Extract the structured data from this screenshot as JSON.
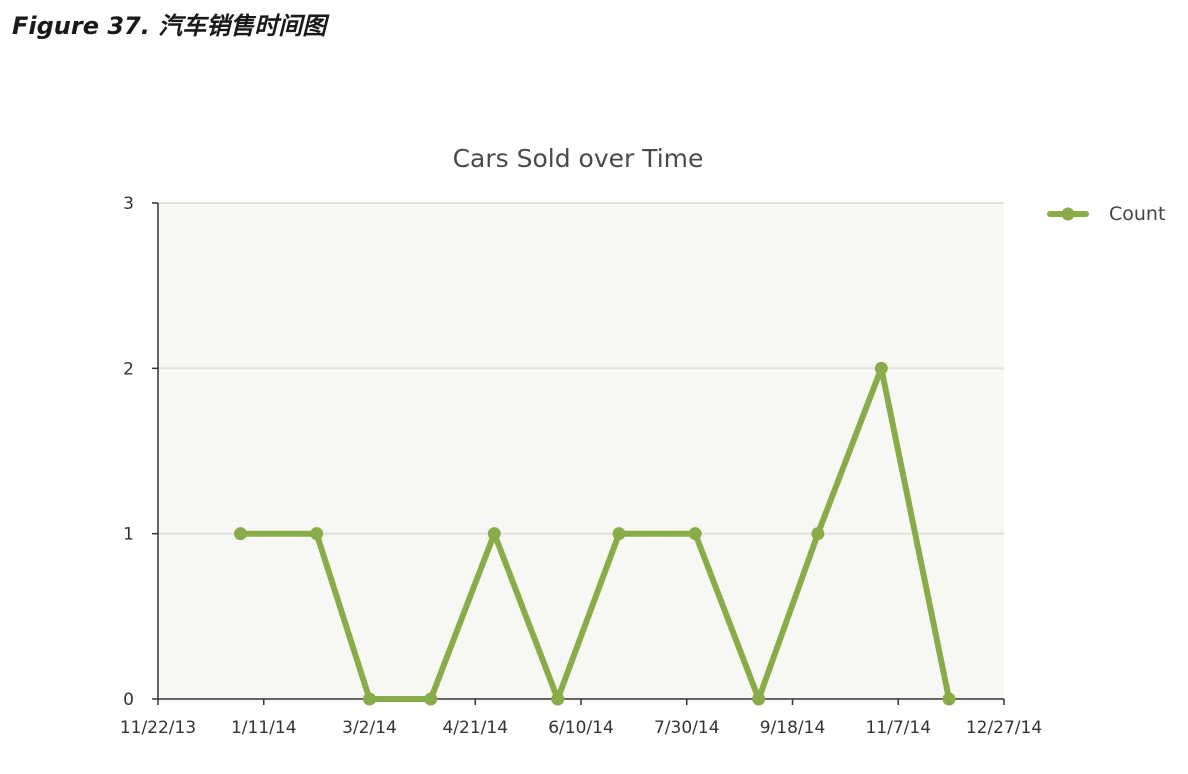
{
  "figure": {
    "caption": "Figure 37. 汽车销售时间图"
  },
  "chart_data": {
    "type": "line",
    "title": "Cars Sold over Time",
    "xlabel": "",
    "ylabel": "",
    "x_axis_kind": "date",
    "xlim": [
      "2013-11-22",
      "2014-12-27"
    ],
    "ylim": [
      0,
      3
    ],
    "x_ticks": [
      "2013-11-22",
      "2014-01-11",
      "2014-03-02",
      "2014-04-21",
      "2014-06-10",
      "2014-07-30",
      "2014-09-18",
      "2014-11-07",
      "2014-12-27"
    ],
    "x_tick_labels": [
      "11/22/13",
      "1/11/14",
      "3/2/14",
      "4/21/14",
      "6/10/14",
      "7/30/14",
      "9/18/14",
      "11/7/14",
      "12/27/14"
    ],
    "y_ticks": [
      0,
      1,
      2,
      3
    ],
    "y_tick_labels": [
      "0",
      "1",
      "2",
      "3"
    ],
    "grid": "horizontal",
    "legend_position": "top-right",
    "series": [
      {
        "name": "Count",
        "color": "#8aab4a",
        "points": [
          {
            "x": "2013-12-31",
            "y": 1
          },
          {
            "x": "2014-02-05",
            "y": 1
          },
          {
            "x": "2014-03-02",
            "y": 0
          },
          {
            "x": "2014-03-31",
            "y": 0
          },
          {
            "x": "2014-04-30",
            "y": 1
          },
          {
            "x": "2014-05-30",
            "y": 0
          },
          {
            "x": "2014-06-28",
            "y": 1
          },
          {
            "x": "2014-08-03",
            "y": 1
          },
          {
            "x": "2014-09-02",
            "y": 0
          },
          {
            "x": "2014-09-30",
            "y": 1
          },
          {
            "x": "2014-10-30",
            "y": 2
          },
          {
            "x": "2014-12-01",
            "y": 0
          }
        ]
      }
    ]
  },
  "colors": {
    "plot_background": "#f7f8f4",
    "gridline": "#dfe2d8",
    "axis": "#333333",
    "series": "#8aab4a"
  }
}
